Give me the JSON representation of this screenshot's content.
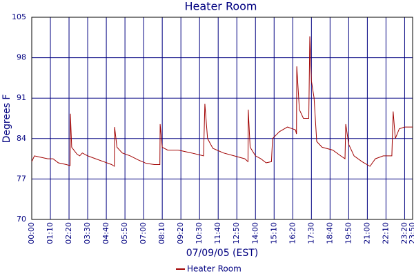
{
  "chart_data": {
    "type": "line",
    "title": "Heater Room",
    "ylabel": "Degrees F",
    "xlabel": "07/09/05 (EST)",
    "xlim": [
      0,
      1430
    ],
    "ylim": [
      70,
      105
    ],
    "yticks": [
      70,
      77,
      84,
      91,
      98,
      105
    ],
    "grid": true,
    "legend": "bottom",
    "xticks": [
      {
        "value": 0,
        "label": "00:00"
      },
      {
        "value": 70,
        "label": "01:10"
      },
      {
        "value": 140,
        "label": "02:20"
      },
      {
        "value": 210,
        "label": "03:30"
      },
      {
        "value": 280,
        "label": "04:40"
      },
      {
        "value": 350,
        "label": "05:50"
      },
      {
        "value": 420,
        "label": "07:00"
      },
      {
        "value": 490,
        "label": "08:10"
      },
      {
        "value": 560,
        "label": "09:20"
      },
      {
        "value": 630,
        "label": "10:30"
      },
      {
        "value": 700,
        "label": "11:40"
      },
      {
        "value": 770,
        "label": "12:50"
      },
      {
        "value": 840,
        "label": "14:00"
      },
      {
        "value": 910,
        "label": "15:10"
      },
      {
        "value": 980,
        "label": "16:20"
      },
      {
        "value": 1050,
        "label": "17:30"
      },
      {
        "value": 1120,
        "label": "18:40"
      },
      {
        "value": 1190,
        "label": "19:50"
      },
      {
        "value": 1260,
        "label": "21:00"
      },
      {
        "value": 1330,
        "label": "22:10"
      },
      {
        "value": 1400,
        "label": "23:20"
      },
      {
        "value": 1430,
        "label": "23:50"
      }
    ],
    "x": [
      0,
      10,
      30,
      60,
      80,
      100,
      130,
      144,
      145,
      150,
      170,
      180,
      190,
      210,
      240,
      270,
      300,
      310,
      311,
      320,
      340,
      370,
      400,
      430,
      460,
      481,
      482,
      490,
      510,
      550,
      600,
      645,
      650,
      660,
      680,
      720,
      760,
      800,
      812,
      813,
      820,
      840,
      860,
      880,
      900,
      904,
      930,
      960,
      990,
      994,
      995,
      1005,
      1020,
      1040,
      1044,
      1050,
      1060,
      1070,
      1090,
      1130,
      1160,
      1176,
      1179,
      1190,
      1210,
      1240,
      1270,
      1290,
      1320,
      1352,
      1357,
      1365,
      1380,
      1400,
      1430
    ],
    "series": [
      {
        "name": "Heater Room",
        "color": "#a00000",
        "values": [
          80,
          81,
          80.8,
          80.5,
          80.5,
          79.8,
          79.5,
          79.3,
          88.3,
          82.5,
          81.3,
          81,
          81.5,
          81,
          80.5,
          80,
          79.5,
          79.2,
          86,
          82.5,
          81.5,
          81,
          80.3,
          79.7,
          79.5,
          79.5,
          86.5,
          82.5,
          82,
          82,
          81.5,
          81,
          90,
          84,
          82.3,
          81.5,
          81,
          80.5,
          80,
          89,
          82.5,
          81,
          80.5,
          79.8,
          80,
          84,
          85.2,
          86,
          85.5,
          84.8,
          96.5,
          89,
          87.5,
          87.5,
          101.7,
          94,
          91,
          83.5,
          82.5,
          82,
          81,
          80.5,
          86.5,
          83,
          81,
          80,
          79.2,
          80.5,
          81,
          81,
          88.7,
          84,
          85.7,
          86,
          86
        ]
      }
    ]
  }
}
